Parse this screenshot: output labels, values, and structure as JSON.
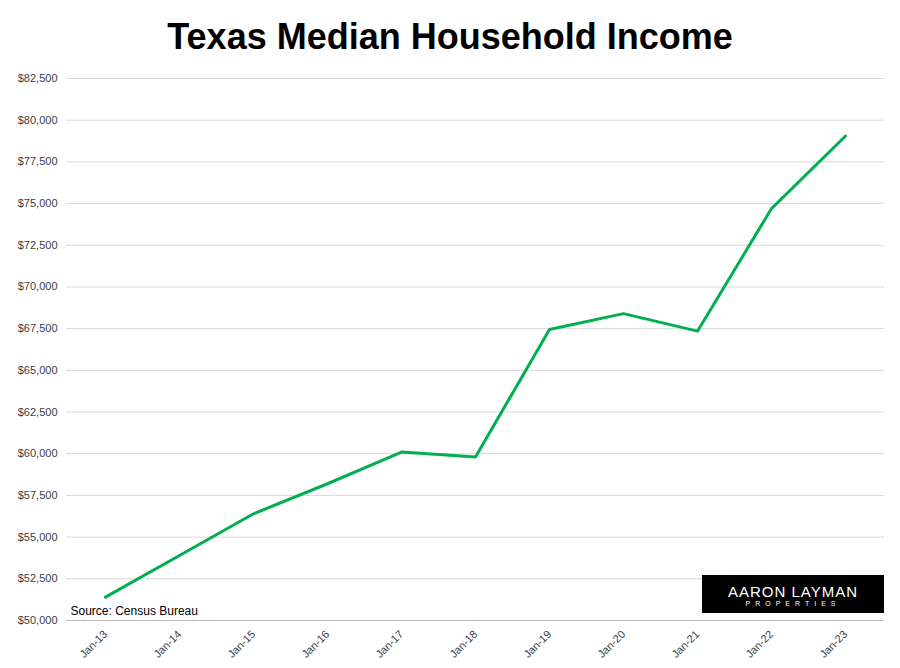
{
  "chart_data": {
    "type": "line",
    "title": "Texas Median Household Income",
    "source": "Source: Census Bureau",
    "annotations": [
      "AARON LAYMAN",
      "PROPERTIES"
    ],
    "categories": [
      "Jan-13",
      "Jan-14",
      "Jan-15",
      "Jan-16",
      "Jan-17",
      "Jan-18",
      "Jan-19",
      "Jan-20",
      "Jan-21",
      "Jan-22",
      "Jan-23"
    ],
    "values": [
      51400,
      53900,
      56400,
      58200,
      60100,
      59800,
      67450,
      68400,
      67350,
      74700,
      79050
    ],
    "color": "#00b050",
    "ylim": [
      50000,
      82500
    ],
    "yticks": [
      {
        "value": 50000,
        "label": "$50,000"
      },
      {
        "value": 52500,
        "label": "$52,500"
      },
      {
        "value": 55000,
        "label": "$55,000"
      },
      {
        "value": 57500,
        "label": "$57,500"
      },
      {
        "value": 60000,
        "label": "$60,000"
      },
      {
        "value": 62500,
        "label": "$62,500"
      },
      {
        "value": 65000,
        "label": "$65,000"
      },
      {
        "value": 67500,
        "label": "$67,500"
      },
      {
        "value": 70000,
        "label": "$70,000"
      },
      {
        "value": 72500,
        "label": "$72,500"
      },
      {
        "value": 75000,
        "label": "$75,000"
      },
      {
        "value": 77500,
        "label": "$77,500"
      },
      {
        "value": 80000,
        "label": "$80,000"
      },
      {
        "value": 82500,
        "label": "$82,500"
      }
    ],
    "grid": true
  }
}
